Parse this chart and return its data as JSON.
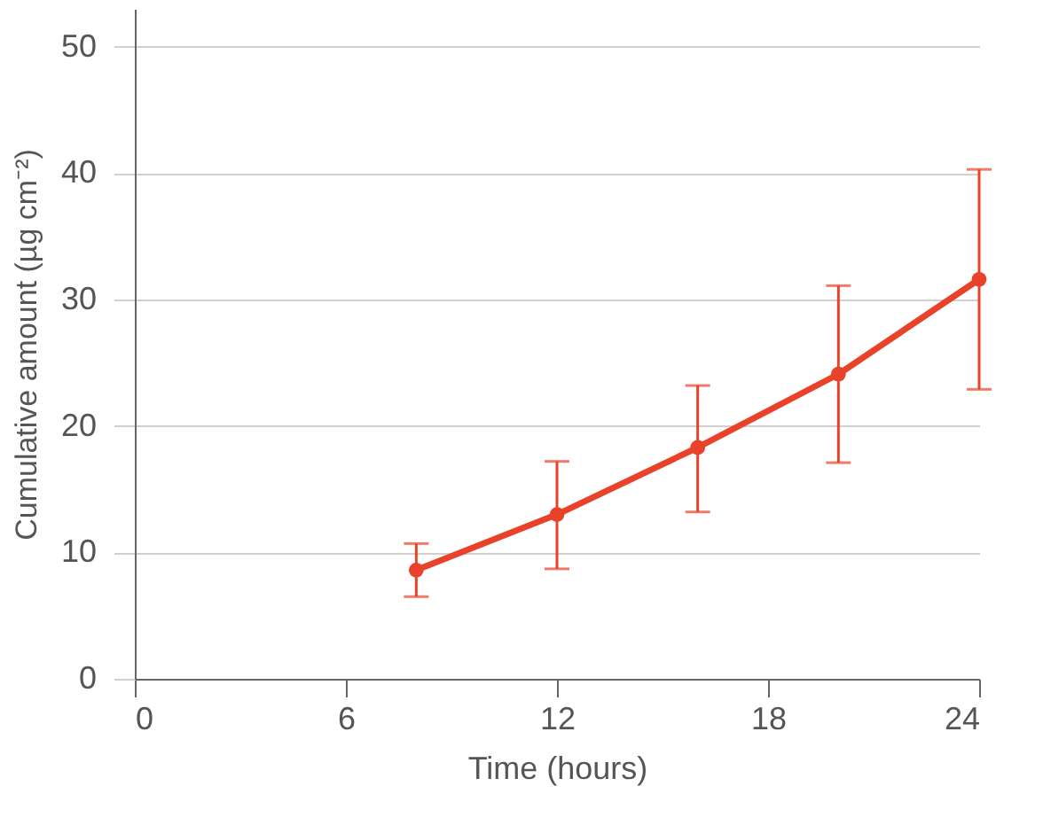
{
  "chart_data": {
    "type": "line",
    "xlabel": "Time (hours)",
    "ylabel": "Cumulative amount (µg cm⁻²)",
    "x": [
      8,
      12,
      16,
      20,
      24
    ],
    "series": [
      {
        "color": "#e8432a",
        "values": [
          8.6,
          13.0,
          18.3,
          24.1,
          31.6
        ],
        "errors": [
          [
            6.5,
            10.7
          ],
          [
            8.7,
            17.2
          ],
          [
            13.2,
            23.2
          ],
          [
            17.1,
            31.1
          ],
          [
            22.9,
            40.3
          ]
        ]
      }
    ],
    "xlim": [
      0,
      24
    ],
    "xticks": [
      0,
      6,
      12,
      18,
      24
    ],
    "ylim": [
      0,
      53
    ],
    "yticks": [
      0,
      10,
      20,
      30,
      40,
      50
    ],
    "grid": "y",
    "marker": "circle",
    "line_style": "solid"
  }
}
